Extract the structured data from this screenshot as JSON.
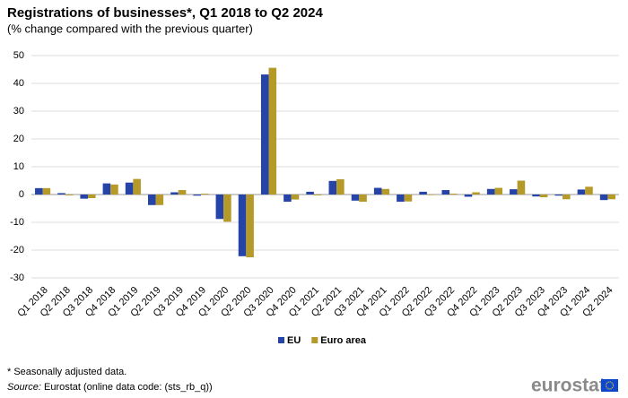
{
  "chart_data": {
    "type": "bar",
    "title": "Registrations of businesses*, Q1 2018 to Q2 2024",
    "subtitle": "(% change compared with the previous quarter)",
    "categories": [
      "Q1 2018",
      "Q2 2018",
      "Q3 2018",
      "Q4 2018",
      "Q1 2019",
      "Q2 2019",
      "Q3 2019",
      "Q4 2019",
      "Q1 2020",
      "Q2 2020",
      "Q3 2020",
      "Q4 2020",
      "Q1 2021",
      "Q2 2021",
      "Q3 2021",
      "Q4 2021",
      "Q1 2022",
      "Q2 2022",
      "Q3 2022",
      "Q4 2022",
      "Q1 2023",
      "Q2 2023",
      "Q3 2023",
      "Q4 2023",
      "Q1 2024",
      "Q2 2024"
    ],
    "series": [
      {
        "name": "EU",
        "color": "#2644a8",
        "values": [
          2.3,
          0.5,
          -1.5,
          4.0,
          4.3,
          -3.8,
          0.8,
          -0.4,
          -8.8,
          -22.2,
          43.2,
          -2.6,
          1.0,
          4.9,
          -2.2,
          2.4,
          -2.6,
          1.0,
          1.6,
          -0.8,
          2.0,
          1.9,
          -0.7,
          -0.4,
          1.8,
          -2.0
        ]
      },
      {
        "name": "Euro area",
        "color": "#b59a2a",
        "values": [
          2.3,
          -0.3,
          -1.3,
          3.6,
          5.6,
          -3.8,
          1.6,
          0.3,
          -9.8,
          -22.6,
          45.6,
          -1.8,
          -0.3,
          5.5,
          -2.6,
          2.0,
          -2.5,
          -0.2,
          0.3,
          0.8,
          2.4,
          5.0,
          -1.0,
          -1.7,
          2.8,
          -1.7
        ]
      }
    ],
    "ylim": [
      -30,
      50
    ],
    "yticks": [
      -30,
      -20,
      -10,
      0,
      10,
      20,
      30,
      40,
      50
    ],
    "grid": true,
    "footnote": "* Seasonally adjusted data.",
    "source_label": "Source:",
    "source_text": "Eurostat (online data code: (sts_rb_q))",
    "logo": "eurostat"
  }
}
